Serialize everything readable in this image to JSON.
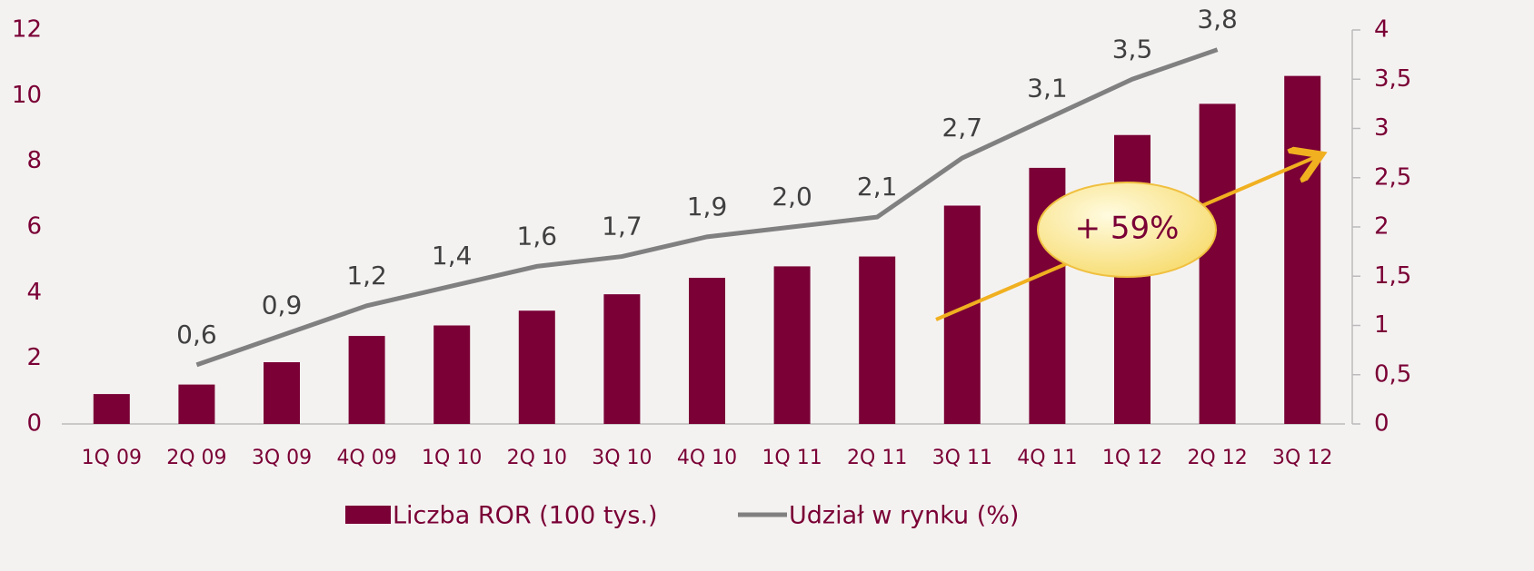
{
  "chart_data": {
    "type": "bar_line",
    "categories": [
      "1Q 09",
      "2Q 09",
      "3Q 09",
      "4Q 09",
      "1Q 10",
      "2Q 10",
      "3Q 10",
      "4Q 10",
      "1Q 11",
      "2Q 11",
      "3Q 11",
      "4Q 11",
      "1Q 12",
      "2Q 12",
      "3Q 12"
    ],
    "series": [
      {
        "name": "Liczba ROR (100 tys.)",
        "type": "bar",
        "color": "#7a0035",
        "values": [
          0.91,
          1.2,
          1.88,
          2.68,
          3.0,
          3.45,
          3.95,
          4.45,
          4.8,
          5.1,
          6.65,
          7.8,
          8.8,
          9.75,
          10.6
        ]
      },
      {
        "name": "Udział w rynku (%)",
        "type": "line",
        "color": "#808080",
        "axis": "y2",
        "values": [
          null,
          0.6,
          0.9,
          1.2,
          1.4,
          1.6,
          1.7,
          1.9,
          2.0,
          2.1,
          2.7,
          3.1,
          3.5,
          3.8,
          null
        ],
        "value_labels": [
          null,
          "0,6",
          "0,9",
          "1,2",
          "1,4",
          "1,6",
          "1,7",
          "1,9",
          "2,0",
          "2,1",
          "2,7",
          "3,1",
          "3,5",
          "3,8",
          null
        ]
      }
    ],
    "ylim": [
      0,
      12
    ],
    "yticks": [
      0,
      2,
      4,
      6,
      8,
      10,
      12
    ],
    "y2lim": [
      0,
      4
    ],
    "y2ticks": [
      0,
      {
        "value": 0.5,
        "label": "0,5"
      },
      1,
      {
        "value": 1.5,
        "label": "1,5"
      },
      2,
      {
        "value": 2.5,
        "label": "2,5"
      },
      3,
      {
        "value": 3.5,
        "label": "3,5"
      },
      4
    ],
    "annotations": [
      "+ 59%"
    ],
    "legend": "bottom"
  }
}
